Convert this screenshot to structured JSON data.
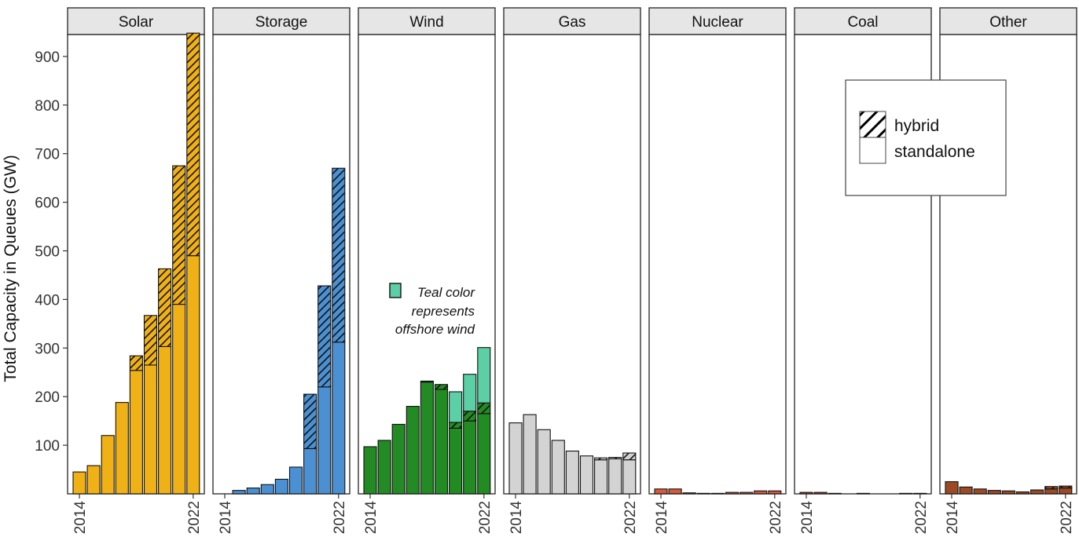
{
  "chart_data": {
    "type": "bar",
    "ylabel": "Total Capacity in Queues (GW)",
    "ylim": [
      0,
      1000
    ],
    "yticks": [
      100,
      200,
      300,
      400,
      500,
      600,
      700,
      800,
      900
    ],
    "years": [
      2014,
      2015,
      2016,
      2017,
      2018,
      2019,
      2020,
      2021,
      2022
    ],
    "xtick_labels": [
      "2014",
      "2022"
    ],
    "legend": {
      "hybrid": "hybrid",
      "standalone": "standalone",
      "position": "top-right"
    },
    "annotation": {
      "lines": [
        "Teal color",
        "represents",
        "offshore wind"
      ],
      "color": "#5ccfa6"
    },
    "panels": [
      {
        "name": "Solar",
        "color": "#f0b117",
        "standalone": [
          45,
          58,
          120,
          188,
          254,
          265,
          303,
          390,
          490
        ],
        "hybrid": [
          0,
          0,
          0,
          0,
          30,
          102,
          160,
          285,
          458
        ]
      },
      {
        "name": "Storage",
        "color": "#4a90d3",
        "standalone": [
          0,
          7,
          12,
          19,
          30,
          55,
          93,
          220,
          312
        ],
        "hybrid": [
          0,
          0,
          0,
          0,
          0,
          0,
          112,
          208,
          358
        ]
      },
      {
        "name": "Wind",
        "color": "#238b23",
        "offshore_color": "#5ccfa6",
        "standalone": [
          97,
          110,
          143,
          180,
          230,
          215,
          135,
          150,
          165
        ],
        "hybrid": [
          0,
          0,
          0,
          0,
          2,
          10,
          12,
          20,
          22
        ],
        "offshore": [
          0,
          0,
          0,
          0,
          0,
          0,
          63,
          76,
          114
        ]
      },
      {
        "name": "Gas",
        "color": "#d3d3d3",
        "standalone": [
          146,
          163,
          132,
          110,
          88,
          78,
          70,
          72,
          70
        ],
        "hybrid": [
          0,
          0,
          0,
          0,
          0,
          0,
          4,
          3,
          14
        ]
      },
      {
        "name": "Nuclear",
        "color": "#d45a3c",
        "standalone": [
          10,
          10,
          2,
          1,
          1,
          3,
          3,
          6,
          6
        ],
        "hybrid": [
          0,
          0,
          0,
          0,
          0,
          0,
          0,
          0,
          0
        ]
      },
      {
        "name": "Coal",
        "color": "#b84528",
        "standalone": [
          3,
          3,
          1,
          0,
          1,
          0,
          0,
          1,
          1
        ],
        "hybrid": [
          0,
          0,
          0,
          0,
          0,
          0,
          0,
          0,
          0
        ]
      },
      {
        "name": "Other",
        "color": "#9c4a24",
        "standalone": [
          25,
          14,
          10,
          7,
          6,
          4,
          8,
          10,
          12
        ],
        "hybrid": [
          0,
          0,
          0,
          0,
          0,
          0,
          0,
          5,
          4
        ]
      }
    ]
  }
}
